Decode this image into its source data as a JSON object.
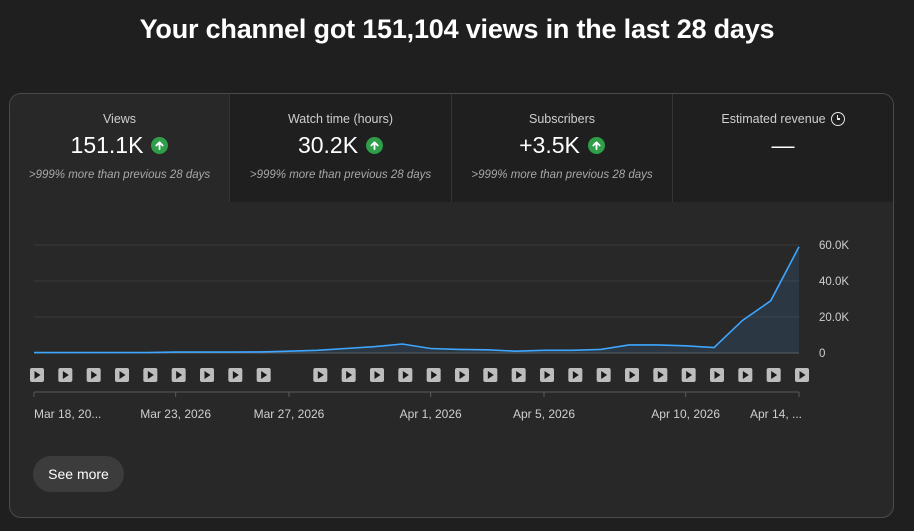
{
  "headline": "Your channel got 151,104 views in the last 28 days",
  "metrics": [
    {
      "label": "Views",
      "value": "151.1K",
      "compare": ">999% more than previous 28 days",
      "trend": "up",
      "selected": true
    },
    {
      "label": "Watch time (hours)",
      "value": "30.2K",
      "compare": ">999% more than previous 28 days",
      "trend": "up",
      "selected": false
    },
    {
      "label": "Subscribers",
      "value": "+3.5K",
      "compare": ">999% more than previous 28 days",
      "trend": "up",
      "selected": false
    },
    {
      "label": "Estimated revenue",
      "value": "—",
      "compare": "",
      "trend": "",
      "selected": false,
      "icon": "clock-icon"
    }
  ],
  "see_more_label": "See more",
  "colors": {
    "line": "#3ea6ff",
    "up_badge": "#2e9e48"
  },
  "chart_data": {
    "type": "line",
    "x": [
      "Mar 18, 2026",
      "Mar 19, 2026",
      "Mar 20, 2026",
      "Mar 21, 2026",
      "Mar 22, 2026",
      "Mar 23, 2026",
      "Mar 24, 2026",
      "Mar 25, 2026",
      "Mar 26, 2026",
      "Mar 27, 2026",
      "Mar 28, 2026",
      "Mar 29, 2026",
      "Mar 30, 2026",
      "Mar 31, 2026",
      "Apr 1, 2026",
      "Apr 2, 2026",
      "Apr 3, 2026",
      "Apr 4, 2026",
      "Apr 5, 2026",
      "Apr 6, 2026",
      "Apr 7, 2026",
      "Apr 8, 2026",
      "Apr 9, 2026",
      "Apr 10, 2026",
      "Apr 11, 2026",
      "Apr 12, 2026",
      "Apr 13, 2026",
      "Apr 14, 2026"
    ],
    "values": [
      200,
      200,
      200,
      200,
      200,
      500,
      500,
      500,
      600,
      1000,
      1500,
      2500,
      3500,
      5000,
      2500,
      2000,
      1800,
      1000,
      1500,
      1500,
      2000,
      4500,
      4500,
      4000,
      3000,
      18000,
      29000,
      59000
    ],
    "x_tick_labels": [
      "Mar 18, 20...",
      "Mar 23, 2026",
      "Mar 27, 2026",
      "Apr 1, 2026",
      "Apr 5, 2026",
      "Apr 10, 2026",
      "Apr 14, ..."
    ],
    "x_tick_index": [
      0,
      5,
      9,
      14,
      18,
      23,
      27
    ],
    "y_ticks": [
      0,
      20000,
      40000,
      60000
    ],
    "y_tick_labels": [
      "0",
      "20.0K",
      "40.0K",
      "60.0K"
    ],
    "ylim": [
      0,
      60000
    ],
    "y_axis_side": "right",
    "grid": true,
    "video_markers": [
      0,
      1,
      2,
      3,
      4,
      5,
      6,
      7,
      8,
      10,
      11,
      12,
      13,
      14,
      15,
      16,
      17,
      18,
      19,
      20,
      21,
      22,
      23,
      24,
      25,
      26,
      27
    ]
  }
}
